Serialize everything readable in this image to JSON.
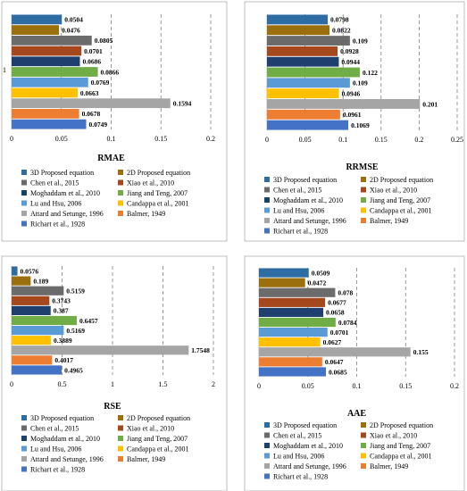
{
  "colors": [
    "#2e6da4",
    "#9c6f0e",
    "#6b6b6b",
    "#a5481e",
    "#1f3f6e",
    "#70ad47",
    "#5b9bd5",
    "#ffc000",
    "#a5a5a5",
    "#ed7d31",
    "#4472c4"
  ],
  "legend": [
    "3D Proposed equation",
    "2D Proposed equation",
    "Chen et al., 2015",
    "Xiao et al., 2010",
    "Moghaddam et al., 2010",
    "Jiang and Teng, 2007",
    "Lu and Hsu, 2006",
    "Candappa et al., 2001",
    "Attard and Setunge, 1996",
    "Balmer, 1949",
    "Richart et al., 1928"
  ],
  "chart_data": [
    {
      "type": "bar",
      "orientation": "horizontal",
      "title": "RMAE",
      "category": "1",
      "series": [
        "3D Proposed equation",
        "2D Proposed equation",
        "Chen et al., 2015",
        "Xiao et al., 2010",
        "Moghaddam et al., 2010",
        "Jiang and Teng, 2007",
        "Lu and Hsu, 2006",
        "Candappa et al., 2001",
        "Attard and Setunge, 1996",
        "Balmer, 1949",
        "Richart et al., 1928"
      ],
      "values": [
        0.0504,
        0.0476,
        0.0805,
        0.0701,
        0.0686,
        0.0866,
        0.0769,
        0.0663,
        0.1594,
        0.0678,
        0.0749
      ],
      "labels": [
        "0.0504",
        "0.0476",
        "0.0805",
        "0.0701",
        "0.0686",
        "0.0866",
        "0.0769",
        "0.0663",
        "0.1594",
        "0.0678",
        "0.0749"
      ],
      "xlim": [
        0,
        0.2
      ],
      "ticks": [
        "0",
        "0.05",
        "0.1",
        "0.15",
        "0.2"
      ],
      "grid": true
    },
    {
      "type": "bar",
      "orientation": "horizontal",
      "title": "RRMSE",
      "series": [
        "3D Proposed equation",
        "2D Proposed equation",
        "Chen et al., 2015",
        "Xiao et al., 2010",
        "Moghaddam et al., 2010",
        "Jiang and Teng, 2007",
        "Lu and Hsu, 2006",
        "Candappa et al., 2001",
        "Attard and Setunge, 1996",
        "Balmer, 1949",
        "Richart et al., 1928"
      ],
      "values": [
        0.0798,
        0.0822,
        0.109,
        0.0928,
        0.0944,
        0.122,
        0.109,
        0.0946,
        0.201,
        0.0961,
        0.1069
      ],
      "labels": [
        "0.0798",
        "0.0822",
        "0.109",
        "0.0928",
        "0.0944",
        "0.122",
        "0.109",
        "0.0946",
        "0.201",
        "0.0961",
        "0.1069"
      ],
      "xlim": [
        0,
        0.25
      ],
      "ticks": [
        "0",
        "0.05",
        "0.1",
        "0.15",
        "0.2",
        "0.25"
      ],
      "grid": true
    },
    {
      "type": "bar",
      "orientation": "horizontal",
      "title": "RSE",
      "series": [
        "3D Proposed equation",
        "2D Proposed equation",
        "Chen et al., 2015",
        "Xiao et al., 2010",
        "Moghaddam et al., 2010",
        "Jiang and Teng, 2007",
        "Lu and Hsu, 2006",
        "Candappa et al., 2001",
        "Attard and Setunge, 1996",
        "Balmer, 1949",
        "Richart et al., 1928"
      ],
      "values": [
        0.0576,
        0.189,
        0.5159,
        0.3743,
        0.387,
        0.6457,
        0.5169,
        0.3889,
        1.7548,
        0.4017,
        0.4965
      ],
      "labels": [
        "0.0576",
        "0.189",
        "0.5159",
        "0.3743",
        "0.387",
        "0.6457",
        "0.5169",
        "0.3889",
        "1.7548",
        "0.4017",
        "0.4965"
      ],
      "xlim": [
        0,
        2
      ],
      "ticks": [
        "0",
        "0.5",
        "1",
        "1.5",
        "2"
      ],
      "grid": true
    },
    {
      "type": "bar",
      "orientation": "horizontal",
      "title": "AAE",
      "series": [
        "3D Proposed equation",
        "2D Proposed equation",
        "Chen et al., 2015",
        "Xiao et al., 2010",
        "Moghaddam et al., 2010",
        "Jiang and Teng, 2007",
        "Lu and Hsu, 2006",
        "Candappa et al., 2001",
        "Attard and Setunge, 1996",
        "Balmer, 1949",
        "Richart et al., 1928"
      ],
      "values": [
        0.0509,
        0.0472,
        0.078,
        0.0677,
        0.0658,
        0.0784,
        0.0701,
        0.0627,
        0.155,
        0.0647,
        0.0685
      ],
      "labels": [
        "0.0509",
        "0.0472",
        "0.078",
        "0.0677",
        "0.0658",
        "0.0784",
        "0.0701",
        "0.0627",
        "0.155",
        "0.0647",
        "0.0685"
      ],
      "xlim": [
        0,
        0.2
      ],
      "ticks": [
        "0",
        "0.05",
        "0.1",
        "0.15",
        "0.2"
      ],
      "grid": true
    }
  ]
}
